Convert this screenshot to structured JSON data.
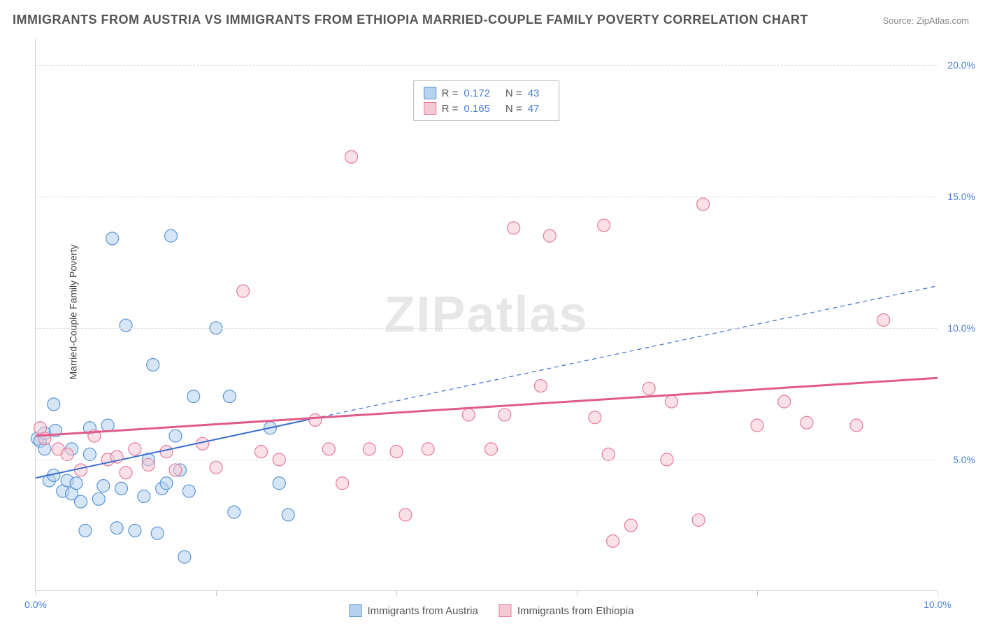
{
  "title": "IMMIGRANTS FROM AUSTRIA VS IMMIGRANTS FROM ETHIOPIA MARRIED-COUPLE FAMILY POVERTY CORRELATION CHART",
  "source": "Source: ZipAtlas.com",
  "watermark": {
    "part1": "ZIP",
    "part2": "atlas"
  },
  "y_axis_label": "Married-Couple Family Poverty",
  "chart": {
    "type": "scatter",
    "xlim": [
      0,
      10
    ],
    "ylim": [
      0,
      21
    ],
    "x_ticks": [
      0,
      2,
      4,
      6,
      8,
      10
    ],
    "x_tick_labels": [
      "0.0%",
      "",
      "",
      "",
      "",
      "10.0%"
    ],
    "y_ticks": [
      5,
      10,
      15,
      20
    ],
    "y_tick_labels": [
      "5.0%",
      "10.0%",
      "15.0%",
      "20.0%"
    ],
    "background_color": "#ffffff",
    "grid_color": "#dddddd",
    "marker_radius": 9,
    "series": [
      {
        "name": "Immigrants from Austria",
        "label": "Immigrants from Austria",
        "fill": "#b7d2ef",
        "stroke": "#5a96d6",
        "fill_opacity": 0.55,
        "R": "0.172",
        "N": "43",
        "trend": {
          "x1": 0,
          "y1": 4.3,
          "x2": 3.0,
          "y2": 6.5,
          "dash_x2": 10,
          "dash_y2": 11.6,
          "color": "#3a6fd0",
          "width": 2
        },
        "points": [
          [
            0.02,
            5.8
          ],
          [
            0.05,
            5.7
          ],
          [
            0.1,
            6.0
          ],
          [
            0.1,
            5.4
          ],
          [
            0.15,
            4.2
          ],
          [
            0.2,
            4.4
          ],
          [
            0.2,
            7.1
          ],
          [
            0.22,
            6.1
          ],
          [
            0.3,
            3.8
          ],
          [
            0.35,
            4.2
          ],
          [
            0.4,
            3.7
          ],
          [
            0.4,
            5.4
          ],
          [
            0.45,
            4.1
          ],
          [
            0.5,
            3.4
          ],
          [
            0.55,
            2.3
          ],
          [
            0.6,
            5.2
          ],
          [
            0.6,
            6.2
          ],
          [
            0.7,
            3.5
          ],
          [
            0.75,
            4.0
          ],
          [
            0.8,
            6.3
          ],
          [
            0.85,
            13.4
          ],
          [
            0.9,
            2.4
          ],
          [
            0.95,
            3.9
          ],
          [
            1.0,
            10.1
          ],
          [
            1.1,
            2.3
          ],
          [
            1.2,
            3.6
          ],
          [
            1.25,
            5.0
          ],
          [
            1.3,
            8.6
          ],
          [
            1.35,
            2.2
          ],
          [
            1.4,
            3.9
          ],
          [
            1.45,
            4.1
          ],
          [
            1.5,
            13.5
          ],
          [
            1.55,
            5.9
          ],
          [
            1.6,
            4.6
          ],
          [
            1.65,
            1.3
          ],
          [
            1.7,
            3.8
          ],
          [
            1.75,
            7.4
          ],
          [
            2.0,
            10.0
          ],
          [
            2.15,
            7.4
          ],
          [
            2.2,
            3.0
          ],
          [
            2.6,
            6.2
          ],
          [
            2.7,
            4.1
          ],
          [
            2.8,
            2.9
          ]
        ]
      },
      {
        "name": "Immigrants from Ethiopia",
        "label": "Immigrants from Ethiopia",
        "fill": "#f6c8d4",
        "stroke": "#e67a9c",
        "fill_opacity": 0.55,
        "R": "0.165",
        "N": "47",
        "trend": {
          "x1": 0,
          "y1": 5.9,
          "x2": 10,
          "y2": 8.1,
          "color": "#e05b8a",
          "width": 3
        },
        "points": [
          [
            0.05,
            6.2
          ],
          [
            0.1,
            5.8
          ],
          [
            0.25,
            5.4
          ],
          [
            0.35,
            5.2
          ],
          [
            0.5,
            4.6
          ],
          [
            0.65,
            5.9
          ],
          [
            0.8,
            5.0
          ],
          [
            0.9,
            5.1
          ],
          [
            1.0,
            4.5
          ],
          [
            1.1,
            5.4
          ],
          [
            1.25,
            4.8
          ],
          [
            1.45,
            5.3
          ],
          [
            1.55,
            4.6
          ],
          [
            1.85,
            5.6
          ],
          [
            2.0,
            4.7
          ],
          [
            2.3,
            11.4
          ],
          [
            2.5,
            5.3
          ],
          [
            2.7,
            5.0
          ],
          [
            3.1,
            6.5
          ],
          [
            3.25,
            5.4
          ],
          [
            3.4,
            4.1
          ],
          [
            3.5,
            16.5
          ],
          [
            3.7,
            5.4
          ],
          [
            4.0,
            5.3
          ],
          [
            4.1,
            2.9
          ],
          [
            4.35,
            5.4
          ],
          [
            4.8,
            6.7
          ],
          [
            5.05,
            5.4
          ],
          [
            5.2,
            6.7
          ],
          [
            5.3,
            13.8
          ],
          [
            5.6,
            7.8
          ],
          [
            5.7,
            13.5
          ],
          [
            6.2,
            6.6
          ],
          [
            6.3,
            13.9
          ],
          [
            6.35,
            5.2
          ],
          [
            6.4,
            1.9
          ],
          [
            6.6,
            2.5
          ],
          [
            6.8,
            7.7
          ],
          [
            7.0,
            5.0
          ],
          [
            7.05,
            7.2
          ],
          [
            7.35,
            2.7
          ],
          [
            7.4,
            14.7
          ],
          [
            8.0,
            6.3
          ],
          [
            8.3,
            7.2
          ],
          [
            8.55,
            6.4
          ],
          [
            9.1,
            6.3
          ],
          [
            9.4,
            10.3
          ]
        ]
      }
    ]
  },
  "stats_legend": {
    "r_label": "R =",
    "n_label": "N ="
  }
}
